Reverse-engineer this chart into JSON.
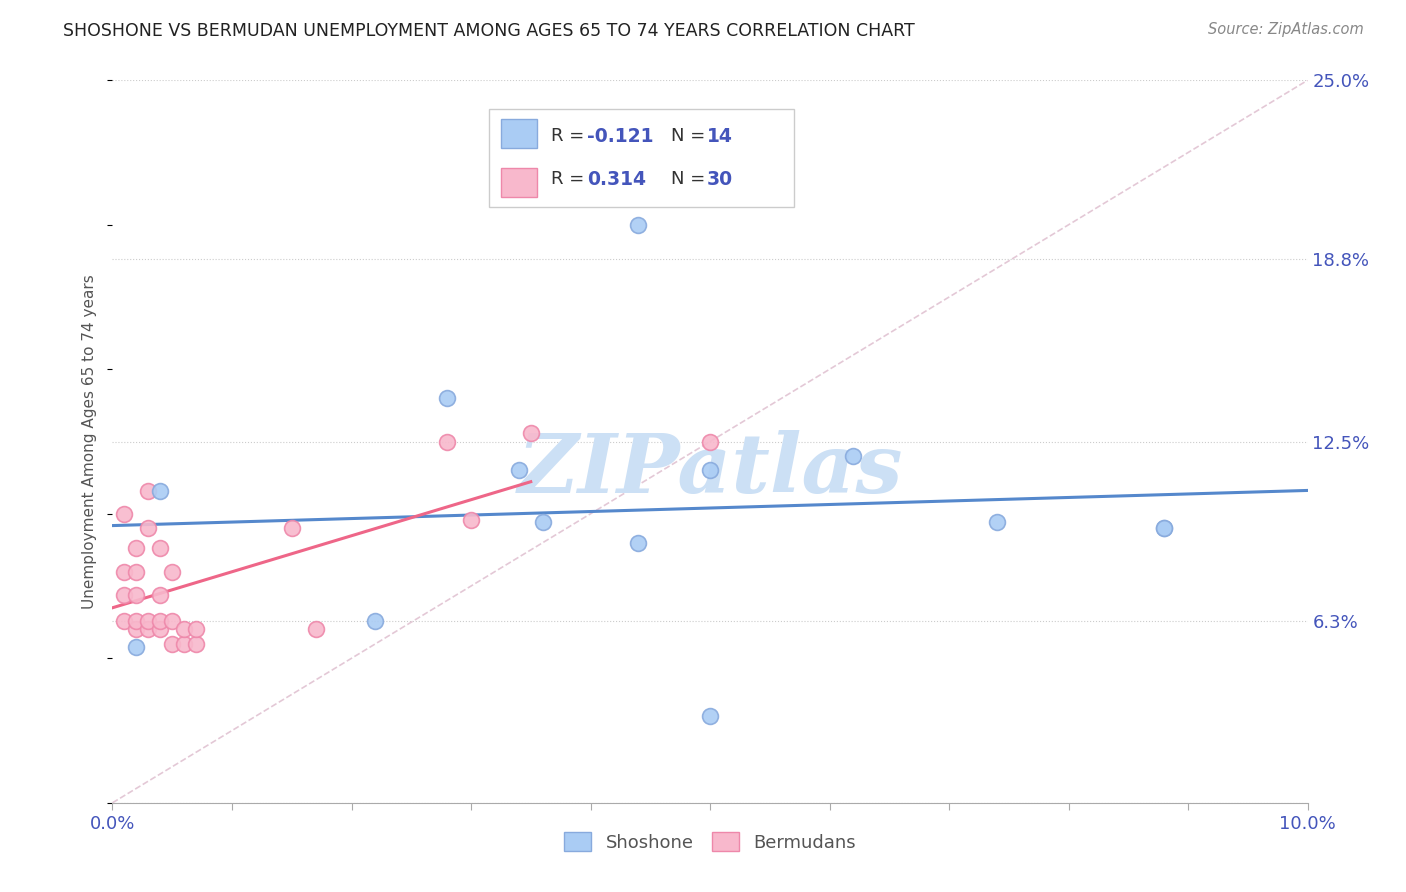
{
  "title": "SHOSHONE VS BERMUDAN UNEMPLOYMENT AMONG AGES 65 TO 74 YEARS CORRELATION CHART",
  "source": "Source: ZipAtlas.com",
  "ylabel": "Unemployment Among Ages 65 to 74 years",
  "xlim": [
    0.0,
    0.1
  ],
  "ylim": [
    0.0,
    0.25
  ],
  "xticks": [
    0.0,
    0.01,
    0.02,
    0.03,
    0.04,
    0.05,
    0.06,
    0.07,
    0.08,
    0.09,
    0.1
  ],
  "xticklabels": [
    "0.0%",
    "",
    "",
    "",
    "",
    "",
    "",
    "",
    "",
    "",
    "10.0%"
  ],
  "ytick_positions": [
    0.0,
    0.063,
    0.125,
    0.188,
    0.25
  ],
  "ytick_labels": [
    "",
    "6.3%",
    "12.5%",
    "18.8%",
    "25.0%"
  ],
  "shoshone_x": [
    0.002,
    0.004,
    0.022,
    0.028,
    0.034,
    0.036,
    0.044,
    0.044,
    0.05,
    0.062,
    0.074,
    0.088,
    0.088,
    0.05
  ],
  "shoshone_y": [
    0.054,
    0.108,
    0.063,
    0.14,
    0.115,
    0.097,
    0.09,
    0.2,
    0.115,
    0.12,
    0.097,
    0.095,
    0.095,
    0.03
  ],
  "bermudan_x": [
    0.001,
    0.001,
    0.001,
    0.001,
    0.002,
    0.002,
    0.002,
    0.002,
    0.002,
    0.003,
    0.003,
    0.003,
    0.003,
    0.004,
    0.004,
    0.004,
    0.004,
    0.005,
    0.005,
    0.005,
    0.006,
    0.006,
    0.007,
    0.007,
    0.015,
    0.017,
    0.028,
    0.035,
    0.05,
    0.03
  ],
  "bermudan_y": [
    0.063,
    0.072,
    0.08,
    0.1,
    0.06,
    0.063,
    0.072,
    0.08,
    0.088,
    0.06,
    0.063,
    0.095,
    0.108,
    0.06,
    0.063,
    0.072,
    0.088,
    0.055,
    0.063,
    0.08,
    0.055,
    0.06,
    0.055,
    0.06,
    0.095,
    0.06,
    0.125,
    0.128,
    0.125,
    0.098
  ],
  "shoshone_color": "#aaccf4",
  "shoshone_edge": "#88aadd",
  "bermudan_color": "#f8b8cc",
  "bermudan_edge": "#ee88aa",
  "shoshone_line_color": "#5588cc",
  "bermudan_line_color": "#ee6688",
  "diag_line_color": "#ddbbcc",
  "watermark_text": "ZIPatlas",
  "watermark_color": "#cce0f5",
  "legend_R1": "R = ",
  "legend_V1": "-0.121",
  "legend_N1": "N = ",
  "legend_NV1": "14",
  "legend_R2": "R = ",
  "legend_V2": "0.314",
  "legend_N2": "N = ",
  "legend_NV2": "30",
  "label_color": "#4455bb",
  "text_color": "#333333"
}
